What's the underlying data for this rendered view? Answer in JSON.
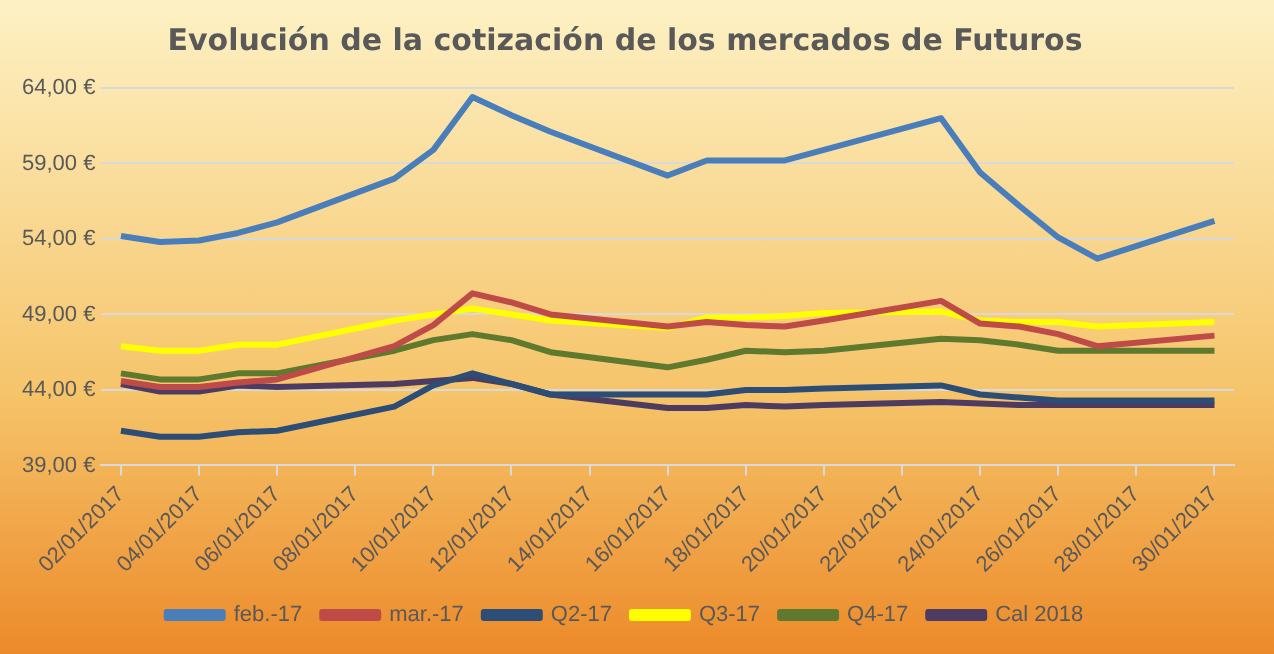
{
  "chart_data": {
    "type": "line",
    "title": "Evolución de la cotización de los mercados de Futuros",
    "x": [
      "2017-01-02",
      "2017-01-03",
      "2017-01-04",
      "2017-01-05",
      "2017-01-06",
      "2017-01-09",
      "2017-01-10",
      "2017-01-11",
      "2017-01-12",
      "2017-01-13",
      "2017-01-16",
      "2017-01-17",
      "2017-01-18",
      "2017-01-19",
      "2017-01-20",
      "2017-01-23",
      "2017-01-24",
      "2017-01-25",
      "2017-01-26",
      "2017-01-27",
      "2017-01-30"
    ],
    "series": [
      {
        "name": "feb.-17",
        "color": "#4a7ebb",
        "values": [
          54.2,
          53.8,
          53.9,
          54.4,
          55.1,
          58.0,
          59.9,
          63.4,
          62.2,
          61.1,
          58.2,
          59.2,
          59.2,
          59.2,
          59.9,
          62.0,
          58.4,
          56.2,
          54.1,
          52.7,
          55.2
        ]
      },
      {
        "name": "mar.-17",
        "color": "#be4b48",
        "values": [
          44.6,
          44.2,
          44.2,
          44.5,
          44.7,
          46.9,
          48.3,
          50.4,
          49.8,
          49.0,
          48.2,
          48.5,
          48.3,
          48.2,
          48.6,
          49.9,
          48.4,
          48.2,
          47.7,
          46.9,
          47.6
        ]
      },
      {
        "name": "Q2-17",
        "color": "#2c4d75",
        "values": [
          41.3,
          40.9,
          40.9,
          41.2,
          41.3,
          42.9,
          44.3,
          45.1,
          44.4,
          43.7,
          43.7,
          43.7,
          44.0,
          44.0,
          44.1,
          44.3,
          43.7,
          43.5,
          43.3,
          43.3,
          43.3
        ]
      },
      {
        "name": "Q3-17",
        "color": "#ffff00",
        "values": [
          46.9,
          46.6,
          46.6,
          47.0,
          47.0,
          48.6,
          49.0,
          49.4,
          49.0,
          48.6,
          48.1,
          48.8,
          48.8,
          48.9,
          49.1,
          49.2,
          48.6,
          48.5,
          48.5,
          48.2,
          48.5
        ]
      },
      {
        "name": "Q4-17",
        "color": "#5f7a2e",
        "values": [
          45.1,
          44.7,
          44.7,
          45.1,
          45.1,
          46.6,
          47.3,
          47.7,
          47.3,
          46.5,
          45.5,
          46.0,
          46.6,
          46.5,
          46.6,
          47.4,
          47.3,
          47.0,
          46.6,
          46.6,
          46.6
        ]
      },
      {
        "name": "Cal 2018",
        "color": "#4e3b62",
        "values": [
          44.4,
          43.9,
          43.9,
          44.3,
          44.2,
          44.4,
          44.6,
          44.8,
          44.4,
          43.7,
          42.8,
          42.8,
          43.0,
          42.9,
          43.0,
          43.2,
          43.1,
          43.0,
          43.0,
          43.0,
          43.0
        ]
      }
    ],
    "xlim": [
      "2017-01-01T12:00",
      "2017-01-30T12:00"
    ],
    "xticks": [
      {
        "value": "2017-01-02",
        "label": "02/01/2017"
      },
      {
        "value": "2017-01-04",
        "label": "04/01/2017"
      },
      {
        "value": "2017-01-06",
        "label": "06/01/2017"
      },
      {
        "value": "2017-01-08",
        "label": "08/01/2017"
      },
      {
        "value": "2017-01-10",
        "label": "10/01/2017"
      },
      {
        "value": "2017-01-12",
        "label": "12/01/2017"
      },
      {
        "value": "2017-01-14",
        "label": "14/01/2017"
      },
      {
        "value": "2017-01-16",
        "label": "16/01/2017"
      },
      {
        "value": "2017-01-18",
        "label": "18/01/2017"
      },
      {
        "value": "2017-01-20",
        "label": "20/01/2017"
      },
      {
        "value": "2017-01-22",
        "label": "22/01/2017"
      },
      {
        "value": "2017-01-24",
        "label": "24/01/2017"
      },
      {
        "value": "2017-01-26",
        "label": "26/01/2017"
      },
      {
        "value": "2017-01-28",
        "label": "28/01/2017"
      },
      {
        "value": "2017-01-30",
        "label": "30/01/2017"
      }
    ],
    "ylim": [
      39,
      64
    ],
    "yticks": [
      {
        "value": 39,
        "label": "39,00 €"
      },
      {
        "value": 44,
        "label": "44,00 €"
      },
      {
        "value": 49,
        "label": "49,00 €"
      },
      {
        "value": 54,
        "label": "54,00 €"
      },
      {
        "value": 59,
        "label": "59,00 €"
      },
      {
        "value": 64,
        "label": "64,00 €"
      }
    ],
    "grid": "y",
    "legend": "bottom",
    "marker": "none",
    "line_style": "solid"
  }
}
